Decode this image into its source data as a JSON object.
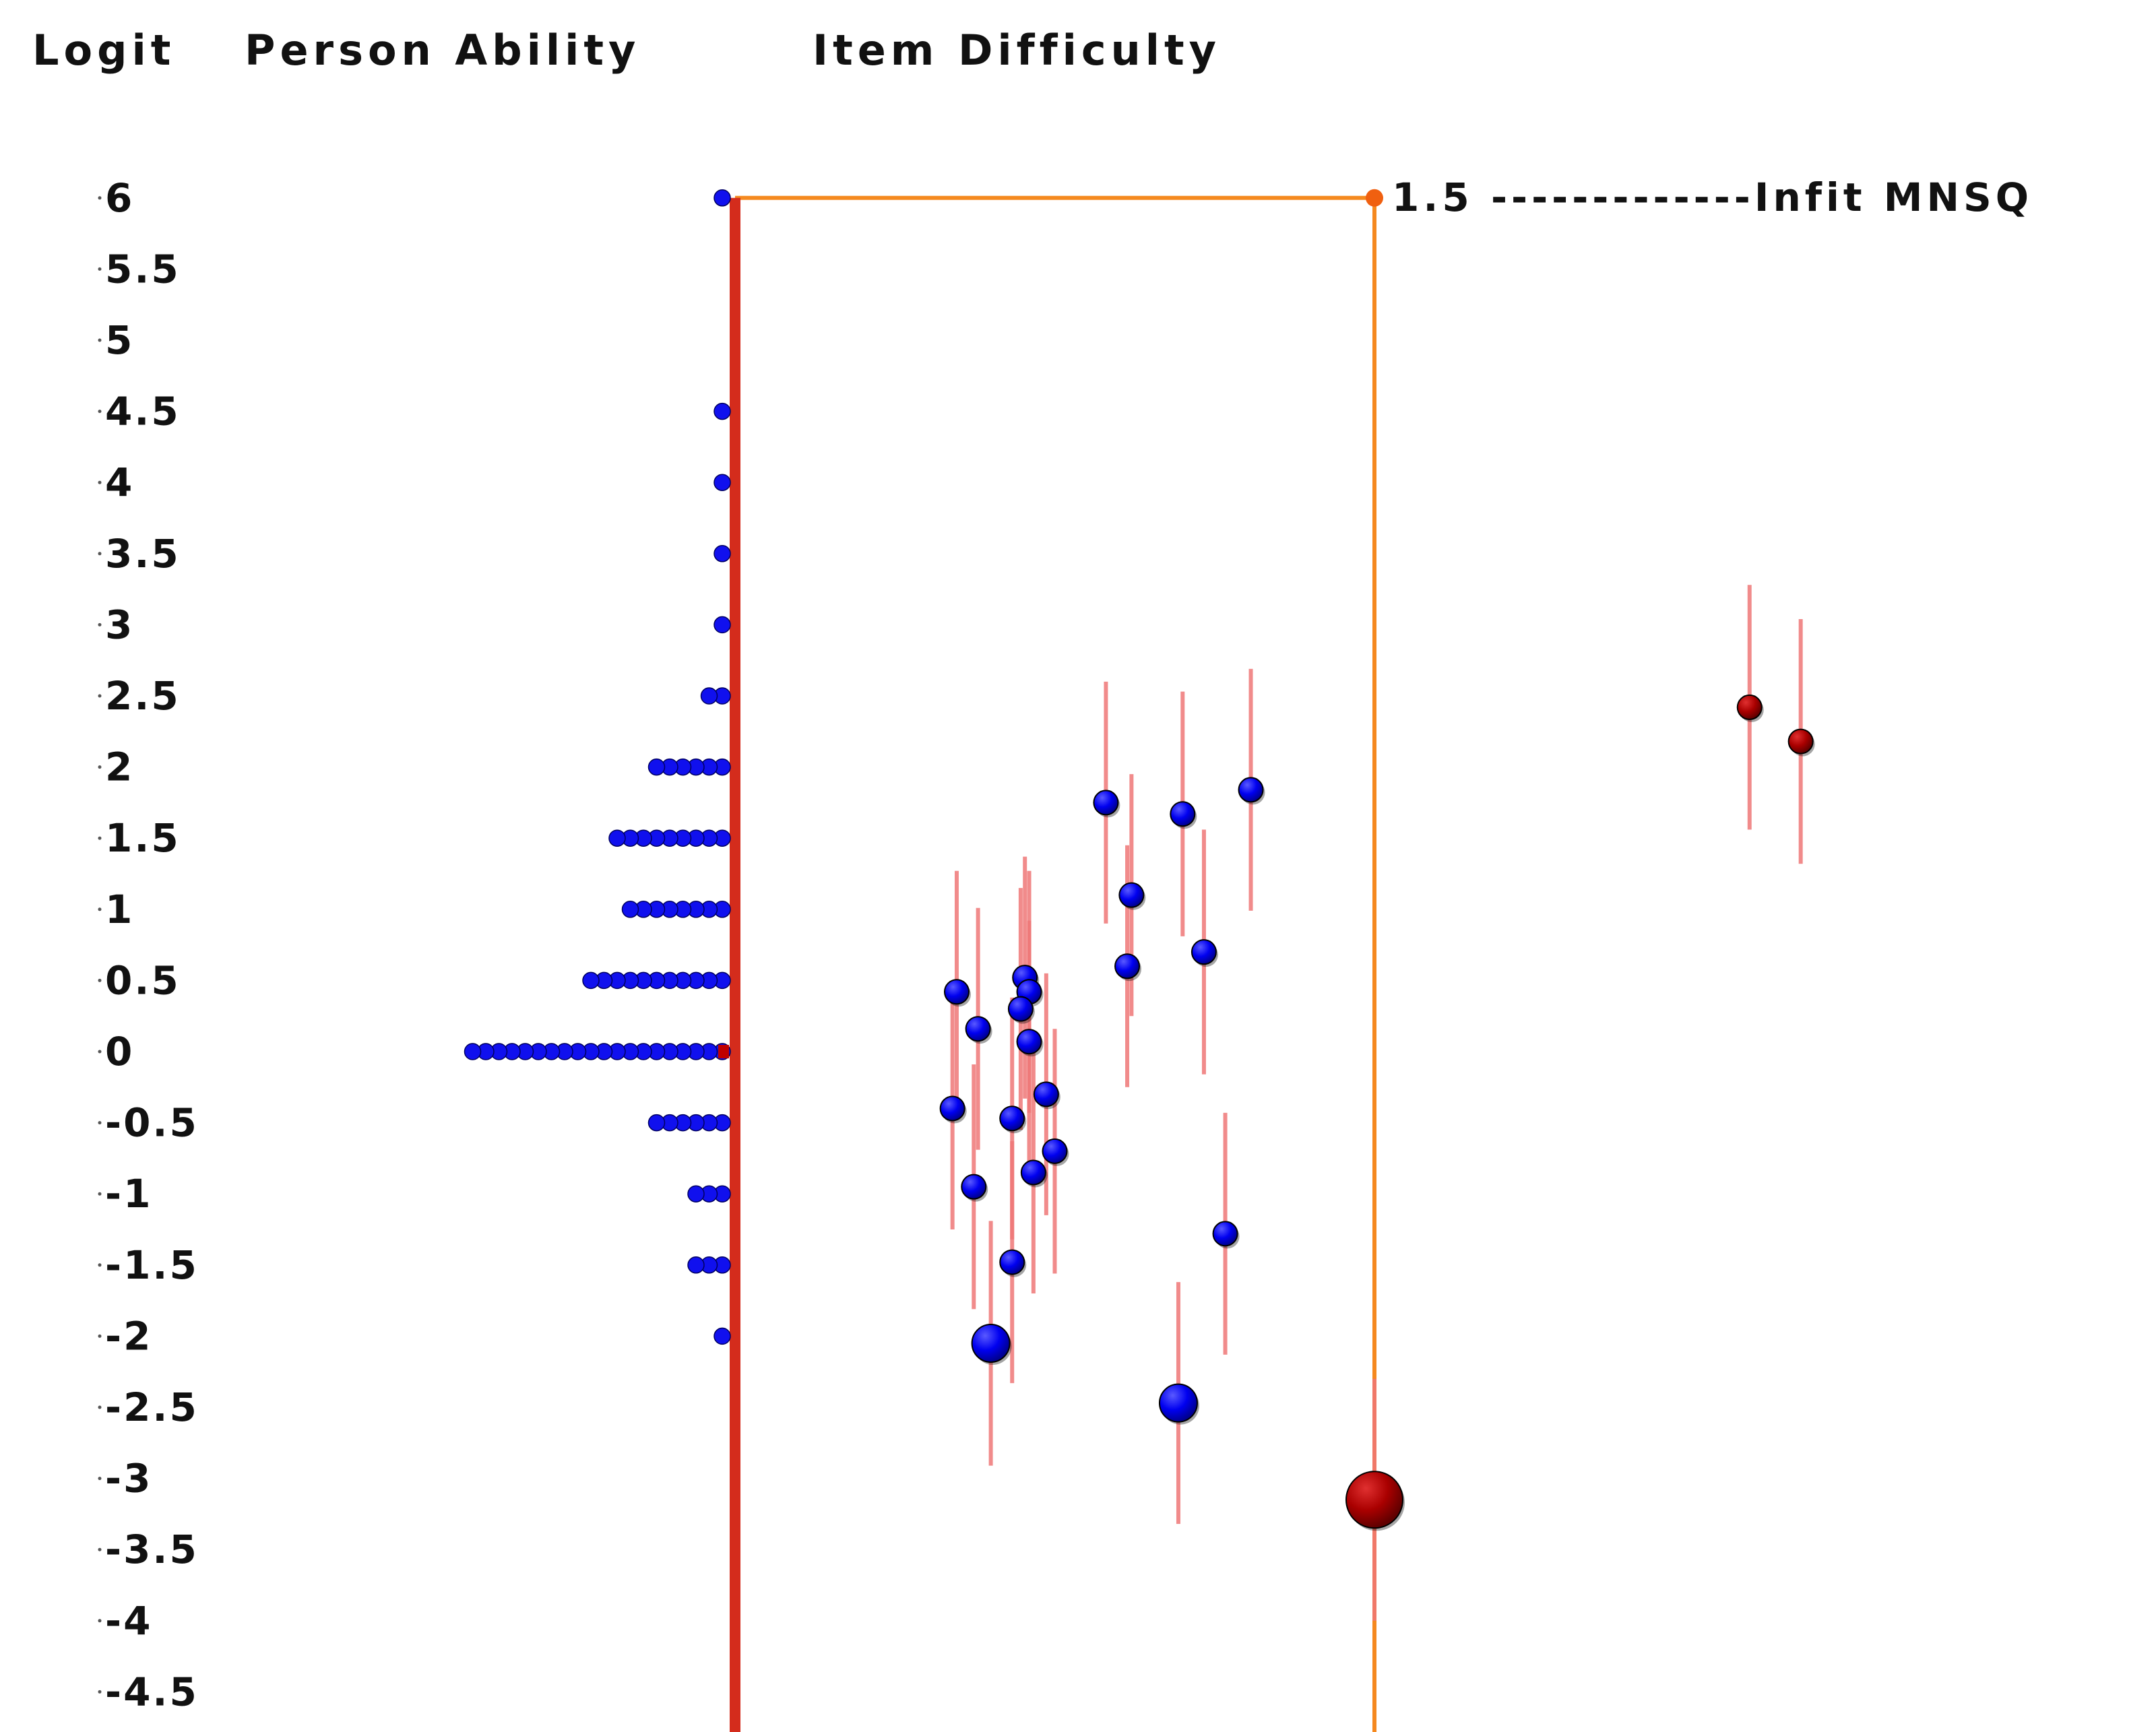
{
  "headers": {
    "logit": "Logit",
    "person_ability": "Person Ability",
    "item_difficulty": "Item Difficulty"
  },
  "infit_label": "1.5 -------------Infit MNSQ",
  "colors": {
    "person_dot": "#1010ee",
    "item_dot": "#0000ff",
    "misfit_item": "#aa0000",
    "ability_axis": "#d42c1c",
    "infit_line": "#f5891f",
    "error_bar": "#ee7777"
  },
  "chart_data": {
    "type": "scatter",
    "ylim": [
      -4.5,
      6
    ],
    "y_ticks": [
      "6",
      "5.5",
      "5",
      "4.5",
      "4",
      "3.5",
      "3",
      "2.5",
      "2",
      "1.5",
      "1",
      "0.5",
      "0",
      "-0.5",
      "-1",
      "-1.5",
      "-2",
      "-2.5",
      "-3",
      "-3.5",
      "-4",
      "-4.5"
    ],
    "infit_threshold": 1.5,
    "person_ability": [
      {
        "logit": 6,
        "count": 1
      },
      {
        "logit": 4.5,
        "count": 1
      },
      {
        "logit": 4,
        "count": 1
      },
      {
        "logit": 3.5,
        "count": 1
      },
      {
        "logit": 3,
        "count": 1
      },
      {
        "logit": 2.5,
        "count": 2
      },
      {
        "logit": 2,
        "count": 6
      },
      {
        "logit": 1.5,
        "count": 9
      },
      {
        "logit": 1,
        "count": 8
      },
      {
        "logit": 0.5,
        "count": 11
      },
      {
        "logit": 0,
        "count": 20
      },
      {
        "logit": -0.5,
        "count": 6
      },
      {
        "logit": -1,
        "count": 3
      },
      {
        "logit": -1.5,
        "count": 3
      },
      {
        "logit": -2,
        "count": 1
      }
    ],
    "items": [
      {
        "infit": 0.87,
        "logit": 1.75,
        "err": 0.85,
        "size": "small",
        "misfit": false
      },
      {
        "infit": 1.05,
        "logit": 1.67,
        "err": 0.86,
        "size": "small",
        "misfit": false
      },
      {
        "infit": 1.21,
        "logit": 1.84,
        "err": 0.85,
        "size": "small",
        "misfit": false
      },
      {
        "infit": 0.93,
        "logit": 1.1,
        "err": 0.85,
        "size": "small",
        "misfit": false
      },
      {
        "infit": 0.92,
        "logit": 0.6,
        "err": 0.85,
        "size": "small",
        "misfit": false
      },
      {
        "infit": 1.1,
        "logit": 0.7,
        "err": 0.86,
        "size": "small",
        "misfit": false
      },
      {
        "infit": 0.52,
        "logit": 0.42,
        "err": 0.85,
        "size": "small",
        "misfit": false
      },
      {
        "infit": 0.57,
        "logit": 0.16,
        "err": 0.85,
        "size": "small",
        "misfit": false
      },
      {
        "infit": 0.68,
        "logit": 0.52,
        "err": 0.85,
        "size": "small",
        "misfit": false
      },
      {
        "infit": 0.69,
        "logit": 0.42,
        "err": 0.85,
        "size": "small",
        "misfit": false
      },
      {
        "infit": 0.67,
        "logit": 0.3,
        "err": 0.85,
        "size": "small",
        "misfit": false
      },
      {
        "infit": 0.69,
        "logit": 0.07,
        "err": 0.85,
        "size": "small",
        "misfit": false
      },
      {
        "infit": 0.51,
        "logit": -0.4,
        "err": 0.85,
        "size": "small",
        "misfit": false
      },
      {
        "infit": 0.65,
        "logit": -0.47,
        "err": 0.85,
        "size": "small",
        "misfit": false
      },
      {
        "infit": 0.73,
        "logit": -0.3,
        "err": 0.85,
        "size": "small",
        "misfit": false
      },
      {
        "infit": 0.75,
        "logit": -0.7,
        "err": 0.86,
        "size": "small",
        "misfit": false
      },
      {
        "infit": 0.7,
        "logit": -0.85,
        "err": 0.85,
        "size": "small",
        "misfit": false
      },
      {
        "infit": 0.56,
        "logit": -0.95,
        "err": 0.86,
        "size": "small",
        "misfit": false
      },
      {
        "infit": 0.65,
        "logit": -1.48,
        "err": 0.85,
        "size": "small",
        "misfit": false
      },
      {
        "infit": 1.15,
        "logit": -1.28,
        "err": 0.85,
        "size": "small",
        "misfit": false
      },
      {
        "infit": 0.6,
        "logit": -2.05,
        "err": 0.86,
        "size": "medium",
        "misfit": false
      },
      {
        "infit": 1.04,
        "logit": -2.47,
        "err": 0.85,
        "size": "medium",
        "misfit": false
      },
      {
        "infit": 1.5,
        "logit": -3.15,
        "err": 0.85,
        "size": "large",
        "misfit": true
      },
      {
        "infit": 2.38,
        "logit": 2.42,
        "err": 0.86,
        "size": "small",
        "misfit": true
      },
      {
        "infit": 2.5,
        "logit": 2.18,
        "err": 0.86,
        "size": "small",
        "misfit": true
      }
    ]
  }
}
